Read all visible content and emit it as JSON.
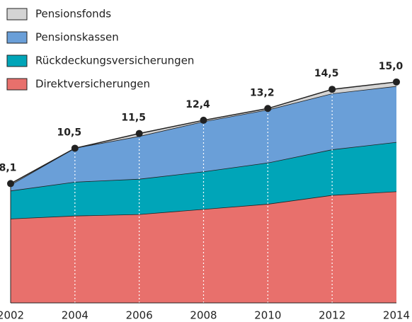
{
  "chart_data": {
    "type": "stacked-area",
    "x": [
      2002,
      2004,
      2006,
      2008,
      2010,
      2012,
      2014
    ],
    "xlim": [
      2002,
      2014
    ],
    "xticks": [
      2002,
      2004,
      2006,
      2008,
      2010,
      2012,
      2014
    ],
    "ylim": [
      0,
      16
    ],
    "series": [
      {
        "name": "Direktversicherungen",
        "color": "#e8706c",
        "values": [
          5.7,
          5.9,
          6.0,
          6.35,
          6.7,
          7.3,
          7.55
        ]
      },
      {
        "name": "Rückdeckungsversicherungen",
        "color": "#00a5b8",
        "values": [
          1.9,
          2.3,
          2.4,
          2.55,
          2.8,
          3.1,
          3.35
        ]
      },
      {
        "name": "Pensionskassen",
        "color": "#6a9fd8",
        "values": [
          0.4,
          2.3,
          2.9,
          3.4,
          3.6,
          3.8,
          3.8
        ]
      },
      {
        "name": "Pensionsfonds",
        "color": "#d4d4d4",
        "values": [
          0.1,
          0,
          0.2,
          0.1,
          0.1,
          0.3,
          0.3
        ]
      }
    ],
    "totals": {
      "values": [
        8.1,
        10.5,
        11.5,
        12.4,
        13.2,
        14.5,
        15.0
      ],
      "value_labels": [
        "8,1",
        "10,5",
        "11,5",
        "12,4",
        "13,2",
        "14,5",
        "15,0"
      ]
    }
  }
}
